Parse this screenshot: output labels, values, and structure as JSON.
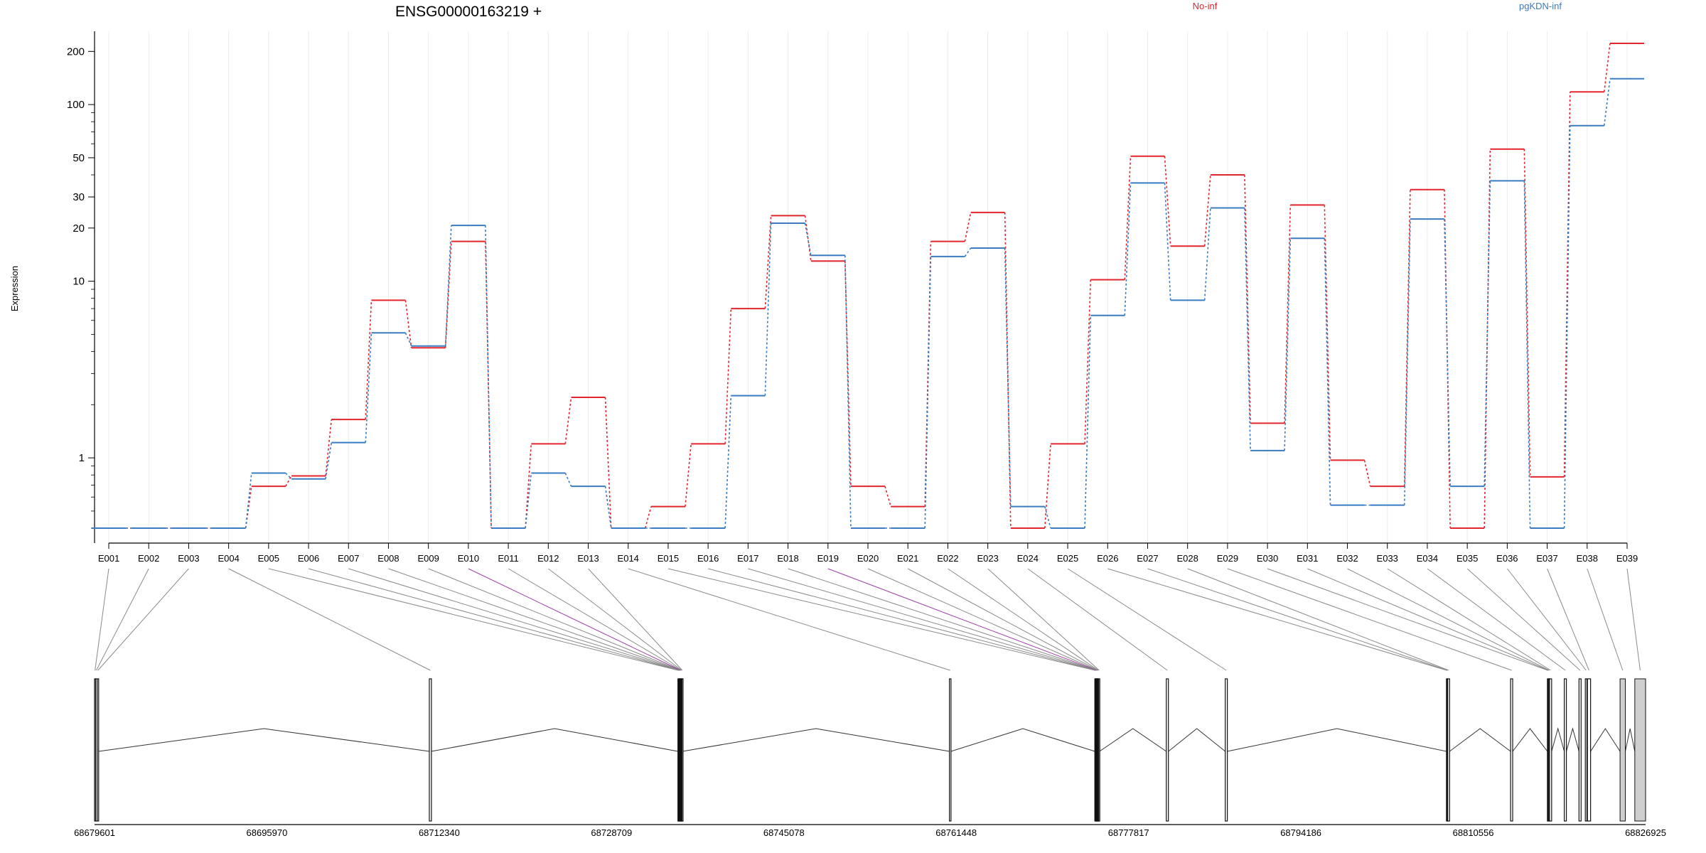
{
  "chart_data": {
    "type": "line",
    "title": "ENSG00000163219 +",
    "ylabel": "Expression",
    "yscale": "log",
    "ylim": [
      0.4,
      260
    ],
    "yticks": [
      1,
      10,
      20,
      30,
      50,
      100,
      200
    ],
    "grid": true,
    "legend_placement": "top-right",
    "categories": [
      "E001",
      "E002",
      "E003",
      "E004",
      "E005",
      "E006",
      "E007",
      "E008",
      "E009",
      "E010",
      "E011",
      "E012",
      "E013",
      "E014",
      "E015",
      "E016",
      "E017",
      "E018",
      "E019",
      "E020",
      "E021",
      "E022",
      "E023",
      "E024",
      "E025",
      "E026",
      "E027",
      "E028",
      "E029",
      "E030",
      "E031",
      "E032",
      "E033",
      "E034",
      "E035",
      "E036",
      "E037",
      "E038",
      "E039"
    ],
    "series": [
      {
        "name": "No-inf",
        "color": "#e3262e",
        "values": [
          0.4,
          0.4,
          0.4,
          0.4,
          0.69,
          0.79,
          1.65,
          7.8,
          4.2,
          16.8,
          0.4,
          1.2,
          2.2,
          0.4,
          0.53,
          1.2,
          7.0,
          23.5,
          13.0,
          0.69,
          0.53,
          16.8,
          24.5,
          0.4,
          1.2,
          10.2,
          51,
          15.8,
          40,
          1.57,
          27,
          0.97,
          0.69,
          33,
          0.4,
          56,
          0.78,
          118,
          222
        ]
      },
      {
        "name": "pgKDN-inf",
        "color": "#3a7bc1",
        "values": [
          0.4,
          0.4,
          0.4,
          0.4,
          0.82,
          0.76,
          1.22,
          5.1,
          4.3,
          20.7,
          0.4,
          0.82,
          0.69,
          0.4,
          0.4,
          0.4,
          2.25,
          21.3,
          14.0,
          0.4,
          0.4,
          13.8,
          15.4,
          0.53,
          0.4,
          6.4,
          36,
          7.8,
          26,
          1.1,
          17.5,
          0.54,
          0.54,
          22.5,
          0.69,
          37,
          0.4,
          76,
          140
        ]
      }
    ],
    "gene_model": {
      "axis_ticks": [
        "68679601",
        "68695970",
        "68712340",
        "68728709",
        "68745078",
        "68761448",
        "68777817",
        "68794186",
        "68810556",
        "68826925"
      ],
      "genomic_range": [
        68679601,
        68826925
      ],
      "exon_start": [
        68679601,
        68679701,
        68679851,
        68711400,
        68735011,
        68735061,
        68735111,
        68735161,
        68735201,
        68735241,
        68735291,
        68735341,
        68735401,
        68760800,
        68774611,
        68774651,
        68774691,
        68774731,
        68774771,
        68774811,
        68774861,
        68774921,
        68774981,
        68781400,
        68787000,
        68808011,
        68808071,
        68808131,
        68814101,
        68817601,
        68817661,
        68817731,
        68817801,
        68819201,
        68820601,
        68821201,
        68821401,
        68824501,
        68825901
      ],
      "exon_end": [
        68679691,
        68679841,
        68679991,
        68711600,
        68735051,
        68735101,
        68735151,
        68735191,
        68735231,
        68735281,
        68735331,
        68735391,
        68735451,
        68760950,
        68774641,
        68774681,
        68774721,
        68774761,
        68774801,
        68774851,
        68774911,
        68774971,
        68775061,
        68781600,
        68787200,
        68808061,
        68808121,
        68808311,
        68814301,
        68817651,
        68817721,
        68817791,
        68818001,
        68819401,
        68820801,
        68821351,
        68821701,
        68825001,
        68826925
      ]
    }
  }
}
